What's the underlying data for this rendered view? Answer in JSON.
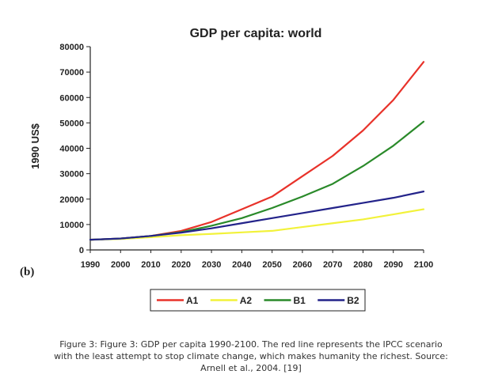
{
  "chart_data": {
    "type": "line",
    "title": "GDP per capita: world",
    "ylabel": "1990 US$",
    "panel_label": "(b)",
    "x": [
      1990,
      2000,
      2010,
      2020,
      2030,
      2040,
      2050,
      2060,
      2070,
      2080,
      2090,
      2100
    ],
    "xlim": [
      1990,
      2100
    ],
    "ylim": [
      0,
      80000
    ],
    "yticks": [
      0,
      10000,
      20000,
      30000,
      40000,
      50000,
      60000,
      70000,
      80000
    ],
    "grid": false,
    "legend_position": "bottom",
    "series": [
      {
        "name": "A1",
        "color": "#e8322a",
        "values": [
          4000,
          4500,
          5500,
          7500,
          11000,
          16000,
          21000,
          29000,
          37000,
          47000,
          59000,
          74000
        ]
      },
      {
        "name": "A2",
        "color": "#f2f23a",
        "values": [
          4000,
          4300,
          5000,
          5800,
          6300,
          6900,
          7500,
          9000,
          10500,
          12000,
          14000,
          16000
        ]
      },
      {
        "name": "B1",
        "color": "#2a8a2a",
        "values": [
          4000,
          4500,
          5500,
          7000,
          9500,
          12500,
          16500,
          21000,
          26000,
          33000,
          41000,
          50500
        ]
      },
      {
        "name": "B2",
        "color": "#23238a",
        "values": [
          4000,
          4500,
          5500,
          6800,
          8500,
          10500,
          12500,
          14500,
          16500,
          18500,
          20500,
          23000
        ]
      }
    ]
  },
  "caption": {
    "line1": "Figure 3: Figure 3: GDP per capita 1990-2100. The red line represents the IPCC scenario",
    "line2": "with the least attempt to stop climate change, which makes humanity the richest. Source:",
    "line3": "Arnell et al., 2004. [19]"
  }
}
